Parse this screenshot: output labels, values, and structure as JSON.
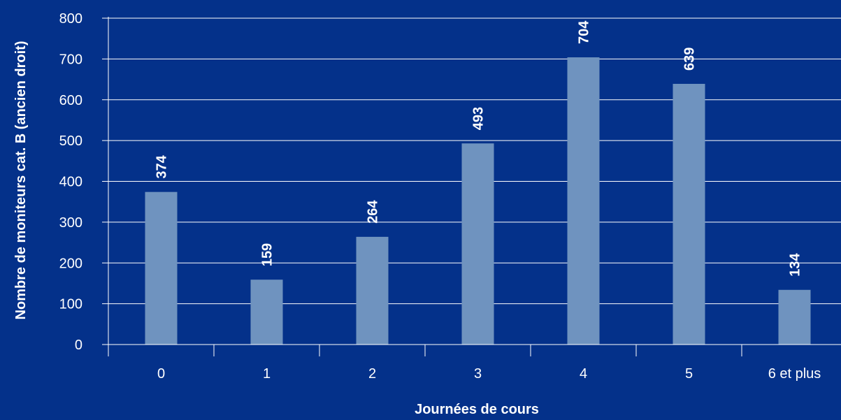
{
  "chart_data": {
    "type": "bar",
    "title": "",
    "xlabel": "Journées de cours",
    "ylabel": "Nombre de moniteurs cat. B (ancien droit)",
    "categories": [
      "0",
      "1",
      "2",
      "3",
      "4",
      "5",
      "6 et plus"
    ],
    "values": [
      374,
      159,
      264,
      493,
      704,
      639,
      134
    ],
    "data_labels": [
      "374",
      "159",
      "264",
      "493",
      "704",
      "639",
      "134"
    ],
    "ylim": [
      0,
      800
    ],
    "yticks": [
      "0",
      "100",
      "200",
      "300",
      "400",
      "500",
      "600",
      "700",
      "800"
    ],
    "grid": true,
    "legend": "none",
    "colors": {
      "background": "#04318a",
      "bar": "#6f93bf",
      "grid": "#ffffff",
      "text": "#ffffff"
    }
  }
}
